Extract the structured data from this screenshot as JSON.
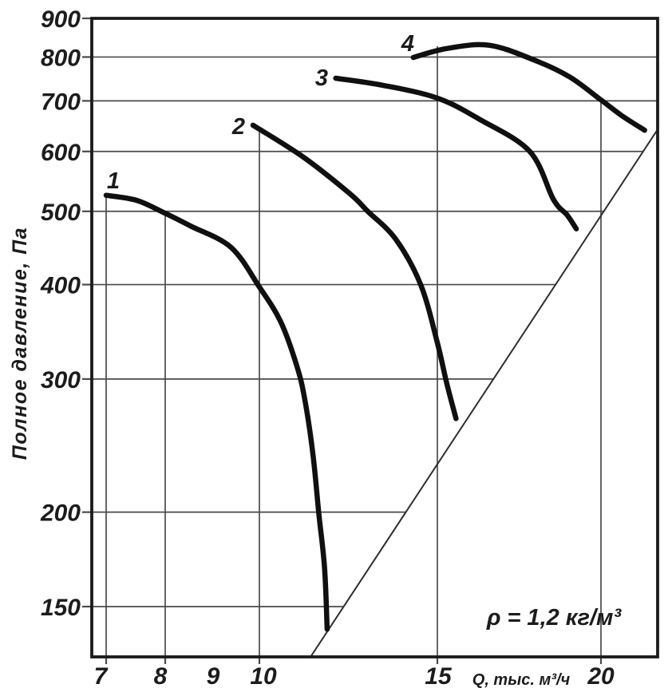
{
  "chart_data": {
    "type": "line",
    "title": "",
    "xlabel": "Q, тыс. м³/ч",
    "ylabel": "Полное давление, Па",
    "x_scale": "log",
    "y_scale": "log",
    "x_ticks": [
      7,
      8,
      9,
      10,
      15,
      20
    ],
    "y_ticks": [
      900,
      800,
      700,
      600,
      500,
      400,
      300,
      200,
      150
    ],
    "x_range": [
      6.8,
      22.1
    ],
    "y_range": [
      130,
      900
    ],
    "grid": true,
    "legend_position": "none",
    "annotation": "ρ = 1,2 кг/м³",
    "series": [
      {
        "name": "curve-1",
        "label": "1",
        "points": [
          [
            7.0,
            525
          ],
          [
            7.5,
            517
          ],
          [
            8.0,
            497
          ],
          [
            8.5,
            478
          ],
          [
            9.35,
            448
          ],
          [
            10.0,
            397
          ],
          [
            10.5,
            357
          ],
          [
            10.9,
            311
          ],
          [
            11.1,
            280
          ],
          [
            11.3,
            238
          ],
          [
            11.45,
            199
          ],
          [
            11.6,
            169
          ],
          [
            11.67,
            140
          ]
        ]
      },
      {
        "name": "curve-2",
        "label": "2",
        "points": [
          [
            9.85,
            650
          ],
          [
            11.05,
            590
          ],
          [
            12.3,
            527
          ],
          [
            12.8,
            500
          ],
          [
            13.65,
            459
          ],
          [
            14.45,
            399
          ],
          [
            15.0,
            335
          ],
          [
            15.25,
            296
          ],
          [
            15.5,
            266
          ]
        ]
      },
      {
        "name": "curve-3",
        "label": "3",
        "points": [
          [
            11.9,
            750
          ],
          [
            13.25,
            734
          ],
          [
            15.0,
            706
          ],
          [
            16.2,
            660
          ],
          [
            17.65,
            600
          ],
          [
            18.4,
            518
          ],
          [
            18.85,
            494
          ],
          [
            19.15,
            474
          ]
        ]
      },
      {
        "name": "curve-4",
        "label": "4",
        "points": [
          [
            14.2,
            799
          ],
          [
            15.25,
            821
          ],
          [
            16.45,
            829
          ],
          [
            17.9,
            789
          ],
          [
            18.95,
            752
          ],
          [
            20.0,
            702
          ],
          [
            20.75,
            669
          ],
          [
            21.6,
            640
          ]
        ]
      }
    ],
    "limit_line": {
      "name": "limit-line",
      "points": [
        [
          11.25,
          129
        ],
        [
          22.08,
          640
        ]
      ]
    },
    "colors": {
      "curve": "#101010",
      "grid": "#4a4a4a",
      "frame": "#1b1b1b",
      "text": "#1c1c1c",
      "background": "#ffffff"
    }
  }
}
